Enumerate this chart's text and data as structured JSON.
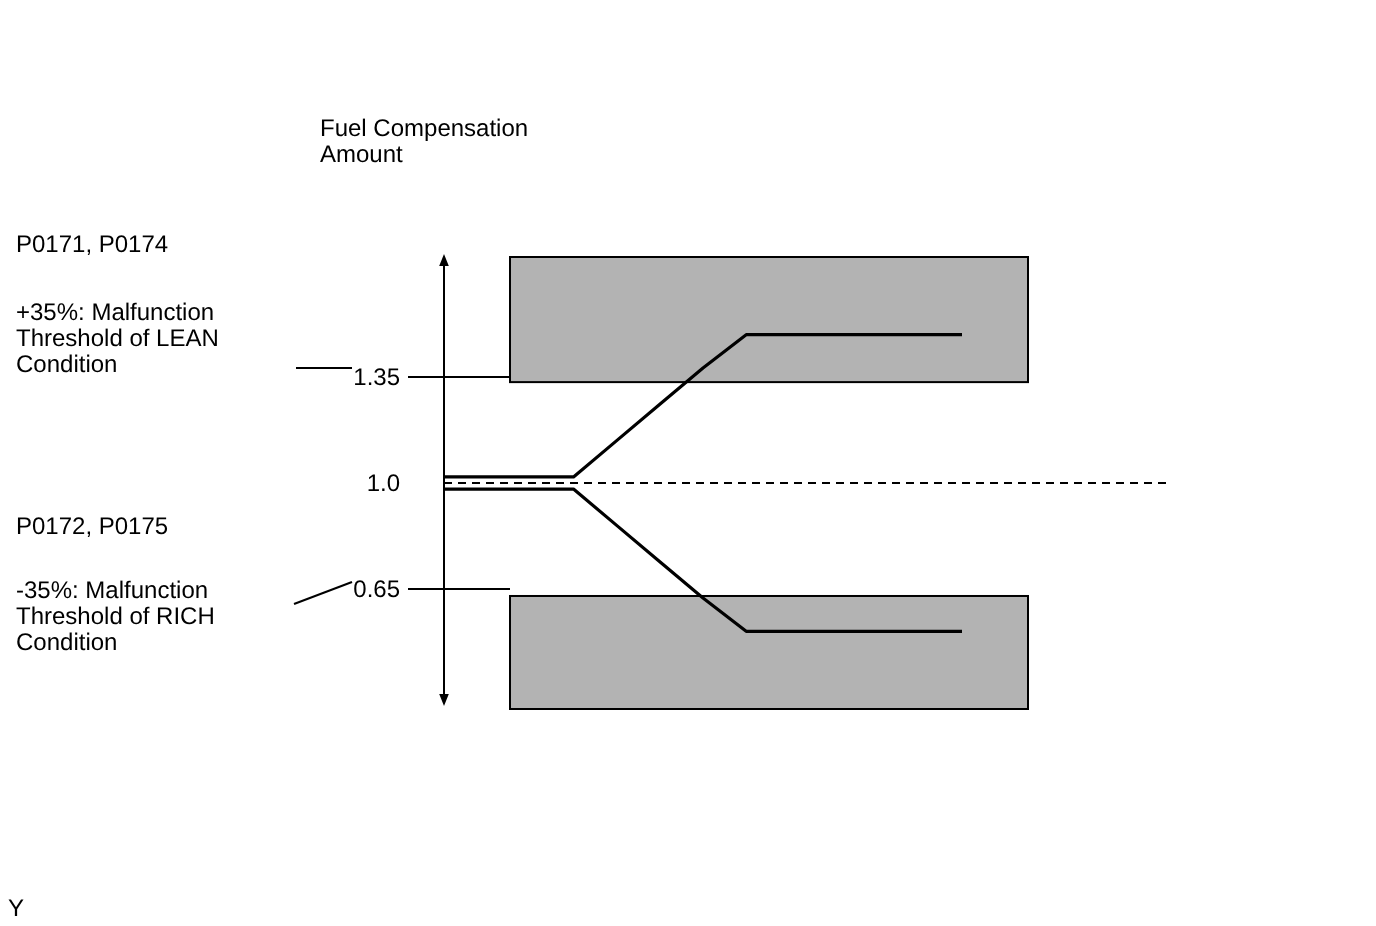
{
  "chart_data": {
    "type": "line",
    "ylabel": "Fuel Compensation Amount",
    "categories": [
      null,
      null,
      null,
      null,
      null,
      null,
      null,
      null,
      null,
      null,
      null,
      null,
      null
    ],
    "ylim": [
      0.25,
      1.75
    ],
    "yticks": [
      1.35,
      {
        "value": 1,
        "label": "1.0"
      },
      0.65
    ],
    "tick_labels": "y",
    "marker": "none",
    "line_style": "solid",
    "series": [
      {
        "color": "#000000",
        "values": [
          1.02,
          1.02,
          1.02,
          1.02,
          1.14,
          1.26,
          1.38,
          1.49,
          1.49,
          1.49,
          1.49,
          1.49,
          1.49
        ]
      },
      {
        "color": "#000000",
        "values": [
          0.98,
          0.98,
          0.98,
          0.98,
          0.86,
          0.74,
          0.62,
          0.51,
          0.51,
          0.51,
          0.51,
          0.51,
          0.51
        ]
      }
    ],
    "bands": [
      {
        "axis": "y",
        "from": 1.33,
        "to": 1.75,
        "color": "#b3b3b3"
      },
      {
        "axis": "y",
        "from": 0.25,
        "to": 0.63,
        "color": "#b3b3b3"
      }
    ],
    "ref_lines": [
      {
        "axis": "y",
        "value": 1,
        "line_style": "dashed"
      },
      {
        "axis": "y",
        "value": 1.35,
        "line_style": "solid"
      },
      {
        "axis": "y",
        "value": 0.65,
        "line_style": "solid"
      }
    ],
    "annotations": [
      "P0171, P0174",
      "+35%: Malfunction Threshold of LEAN Condition",
      "P0172, P0175",
      "-35%: Malfunction Threshold of RICH Condition",
      "Y"
    ]
  }
}
